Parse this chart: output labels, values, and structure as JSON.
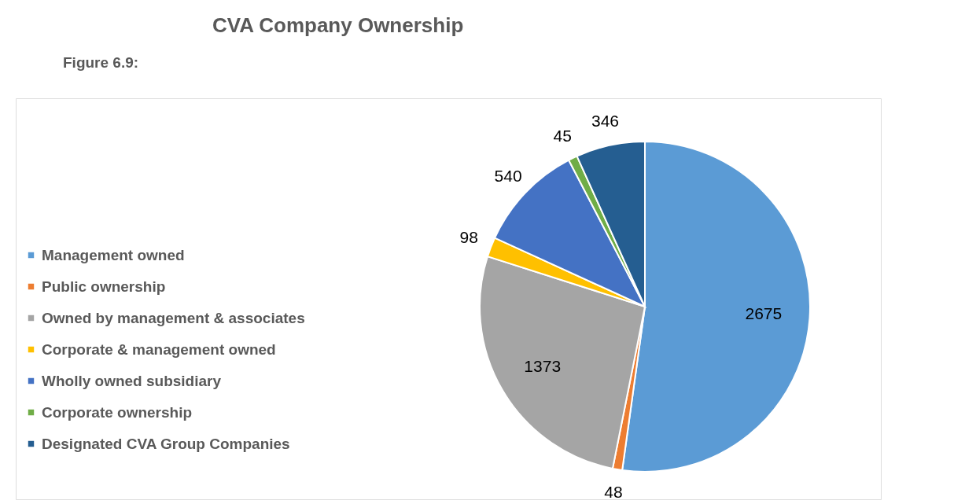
{
  "chart_data": {
    "type": "pie",
    "title": "CVA Company Ownership",
    "annotations": [
      "Figure 6.9:"
    ],
    "categories": [
      "Management owned",
      "Public ownership",
      "Owned by management & associates",
      "Corporate & management owned",
      "Wholly owned subsidiary",
      "Corporate ownership",
      "Designated CVA Group Companies"
    ],
    "values": [
      2675,
      48,
      1373,
      98,
      540,
      45,
      346
    ],
    "colors": [
      "#5b9bd5",
      "#ed7d31",
      "#a5a5a5",
      "#ffc000",
      "#4472c4",
      "#70ad47",
      "#255e91"
    ],
    "data_labels": true,
    "legend": "left"
  }
}
